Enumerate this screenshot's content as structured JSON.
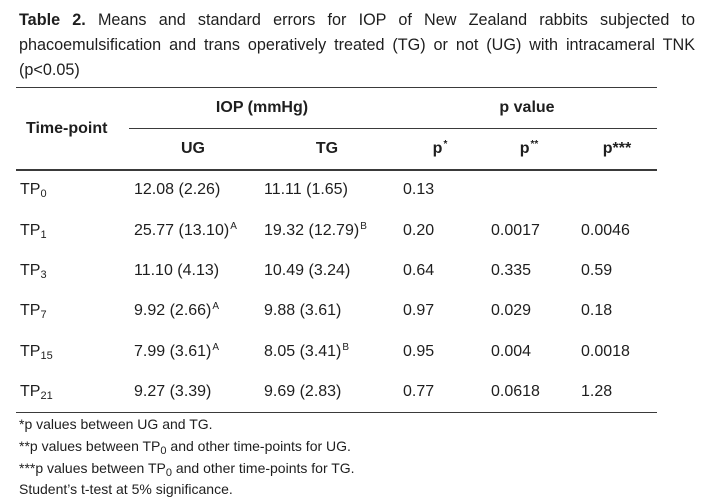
{
  "caption": {
    "label": "Table 2.",
    "text": " Means and standard errors for IOP of New Zealand rabbits subjected to phacoemulsification and trans operatively treated (TG) or not (UG) with intracameral TNK (p<0.05)"
  },
  "header": {
    "timepoint": "Time-point",
    "iop_group": "IOP (mmHg)",
    "p_group": "p value",
    "ug": "UG",
    "tg": "TG",
    "p1": "p",
    "p1_sup": "*",
    "p2": "p",
    "p2_sup": "**",
    "p3": "p***"
  },
  "rows": [
    {
      "tp": "TP",
      "tp_sub": "0",
      "ug": "12.08 (2.26)",
      "ug_sup": "",
      "tg": "11.11 (1.65)",
      "tg_sup": "",
      "p1": "0.13",
      "p2": "",
      "p3": ""
    },
    {
      "tp": "TP",
      "tp_sub": "1",
      "ug": "25.77 (13.10)",
      "ug_sup": "A",
      "tg": "19.32 (12.79)",
      "tg_sup": "B",
      "p1": "0.20",
      "p2": "0.0017",
      "p3": "0.0046"
    },
    {
      "tp": "TP",
      "tp_sub": "3",
      "ug": "11.10 (4.13)",
      "ug_sup": "",
      "tg": "10.49 (3.24)",
      "tg_sup": "",
      "p1": "0.64",
      "p2": "0.335",
      "p3": "0.59"
    },
    {
      "tp": "TP",
      "tp_sub": "7",
      "ug": "9.92 (2.66)",
      "ug_sup": "A",
      "tg": "9.88 (3.61)",
      "tg_sup": "",
      "p1": "0.97",
      "p2": "0.029",
      "p3": "0.18"
    },
    {
      "tp": "TP",
      "tp_sub": "15",
      "ug": "7.99 (3.61)",
      "ug_sup": "A",
      "tg": "8.05 (3.41)",
      "tg_sup": "B",
      "p1": "0.95",
      "p2": "0.004",
      "p3": "0.0018"
    },
    {
      "tp": "TP",
      "tp_sub": "21",
      "ug": "9.27 (3.39)",
      "ug_sup": "",
      "tg": "9.69 (2.83)",
      "tg_sup": "",
      "p1": "0.77",
      "p2": "0.0618",
      "p3": "1.28"
    }
  ],
  "footnotes": {
    "f1": "*p values between UG and TG.",
    "f2a": "**p values between TP",
    "f2sub": "0",
    "f2b": " and other time-points for UG.",
    "f3a": "***p values between TP",
    "f3sub": "0",
    "f3b": " and other time-points for TG.",
    "f4": "Student’s t-test at 5% significance."
  }
}
